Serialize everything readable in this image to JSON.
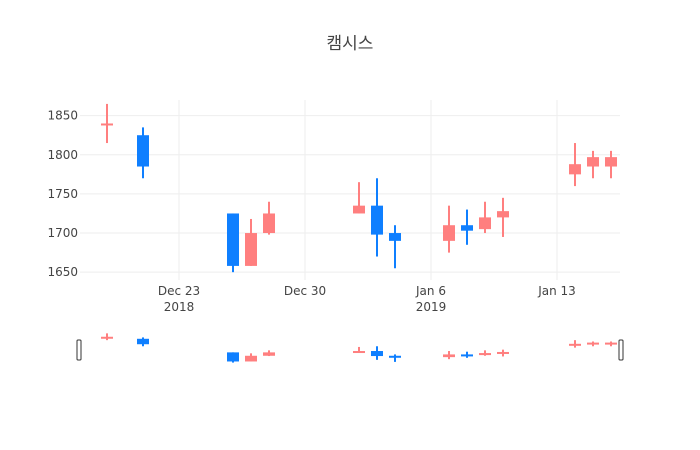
{
  "chart_data": {
    "type": "candlestick",
    "title": "캠시스",
    "x_axis": {
      "ticks": [
        {
          "date": "2018-12-23",
          "label": "Dec 23",
          "sublabel": "2018"
        },
        {
          "date": "2018-12-30",
          "label": "Dec 30",
          "sublabel": ""
        },
        {
          "date": "2019-01-06",
          "label": "Jan 6",
          "sublabel": "2019"
        },
        {
          "date": "2019-01-13",
          "label": "Jan 13",
          "sublabel": ""
        }
      ],
      "range": [
        "2018-12-18",
        "2019-01-16"
      ]
    },
    "y_axis": {
      "ticks": [
        1650,
        1700,
        1750,
        1800,
        1850
      ],
      "range": [
        1640,
        1870
      ]
    },
    "grid": true,
    "legend": "none",
    "rangeslider": true,
    "colors": {
      "increasing": "#ff7f7f",
      "decreasing": "#0f7fff",
      "grid": "#eeeeee"
    },
    "candles": [
      {
        "date": "2018-12-19",
        "open": 1840,
        "high": 1865,
        "low": 1815,
        "close": 1840
      },
      {
        "date": "2018-12-21",
        "open": 1825,
        "high": 1835,
        "low": 1770,
        "close": 1785
      },
      {
        "date": "2018-12-26",
        "open": 1725,
        "high": 1725,
        "low": 1650,
        "close": 1658
      },
      {
        "date": "2018-12-27",
        "open": 1658,
        "high": 1718,
        "low": 1658,
        "close": 1700
      },
      {
        "date": "2018-12-28",
        "open": 1700,
        "high": 1740,
        "low": 1698,
        "close": 1725
      },
      {
        "date": "2019-01-02",
        "open": 1725,
        "high": 1765,
        "low": 1725,
        "close": 1735
      },
      {
        "date": "2019-01-03",
        "open": 1735,
        "high": 1770,
        "low": 1670,
        "close": 1698
      },
      {
        "date": "2019-01-04",
        "open": 1700,
        "high": 1710,
        "low": 1655,
        "close": 1690
      },
      {
        "date": "2019-01-07",
        "open": 1690,
        "high": 1735,
        "low": 1675,
        "close": 1710
      },
      {
        "date": "2019-01-08",
        "open": 1710,
        "high": 1730,
        "low": 1685,
        "close": 1703
      },
      {
        "date": "2019-01-09",
        "open": 1705,
        "high": 1740,
        "low": 1700,
        "close": 1720
      },
      {
        "date": "2019-01-10",
        "open": 1720,
        "high": 1745,
        "low": 1695,
        "close": 1728
      },
      {
        "date": "2019-01-14",
        "open": 1775,
        "high": 1815,
        "low": 1760,
        "close": 1788
      },
      {
        "date": "2019-01-15",
        "open": 1785,
        "high": 1805,
        "low": 1770,
        "close": 1797
      },
      {
        "date": "2019-01-16",
        "open": 1785,
        "high": 1805,
        "low": 1770,
        "close": 1797
      }
    ]
  }
}
